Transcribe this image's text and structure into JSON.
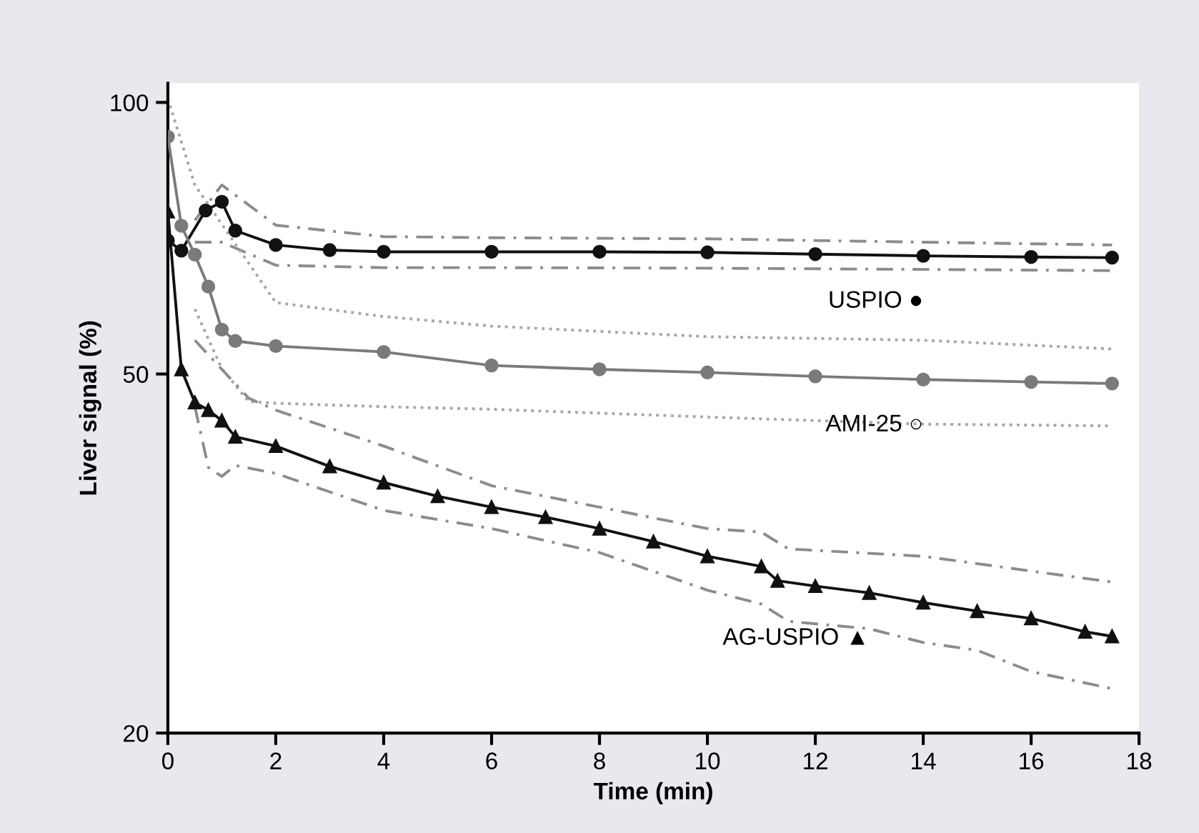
{
  "chart_data": {
    "type": "line",
    "xlabel": "Time (min)",
    "ylabel": "Liver signal (%)",
    "log": "y",
    "xlim": [
      0,
      18
    ],
    "xticks": [
      0,
      2,
      4,
      6,
      8,
      10,
      12,
      14,
      16,
      18
    ],
    "ylim": [
      20,
      105
    ],
    "yticks": [
      20,
      50,
      100
    ],
    "grid": false,
    "legend": false,
    "series": [
      {
        "name": "USPIO ●",
        "color": "#111111",
        "marker": "circle",
        "line_style": "solid",
        "x": [
          0,
          0.25,
          0.7,
          1.0,
          1.25,
          2,
          3,
          4,
          6,
          8,
          10,
          12,
          14,
          16,
          17.5
        ],
        "values": [
          70.3,
          68.5,
          75.9,
          77.6,
          72.1,
          69.5,
          68.6,
          68.3,
          68.3,
          68.3,
          68.2,
          67.9,
          67.6,
          67.4,
          67.3
        ]
      },
      {
        "name": "AMI-25 ○",
        "color": "#7a7a7a",
        "marker": "circle",
        "line_style": "solid",
        "x": [
          0,
          0.25,
          0.5,
          0.75,
          1.0,
          1.25,
          2,
          4,
          6,
          8,
          10,
          12,
          14,
          16,
          17.5
        ],
        "values": [
          91.6,
          73,
          67.8,
          62.5,
          56,
          54.4,
          53.7,
          52.9,
          51.1,
          50.6,
          50.2,
          49.7,
          49.3,
          49.0,
          48.8
        ]
      },
      {
        "name": "AG-USPIO ▲",
        "color": "#111111",
        "marker": "triangle",
        "line_style": "solid",
        "x": [
          0,
          0.25,
          0.5,
          0.75,
          1.0,
          1.25,
          2,
          3,
          4,
          5,
          6,
          7,
          8,
          9,
          10,
          11,
          11.3,
          12,
          13,
          14,
          15,
          16,
          17,
          17.5
        ],
        "values": [
          75.7,
          50.6,
          46.5,
          45.6,
          44.4,
          42.6,
          41.6,
          39.5,
          37.9,
          36.6,
          35.6,
          34.7,
          33.7,
          32.6,
          31.4,
          30.6,
          29.5,
          29.1,
          28.6,
          27.9,
          27.3,
          26.8,
          25.9,
          25.6
        ]
      },
      {
        "color": "#8c8c8c",
        "marker": "none",
        "line_style": "dashed",
        "x": [
          0.5,
          1.0,
          2,
          4,
          6,
          10,
          14,
          17.5
        ],
        "values": [
          74,
          81,
          73.1,
          71.0,
          70.8,
          70.6,
          70.0,
          69.5
        ]
      },
      {
        "color": "#8c8c8c",
        "marker": "none",
        "line_style": "dashed",
        "x": [
          0.5,
          1.0,
          2,
          4,
          6,
          10,
          14,
          17.5
        ],
        "values": [
          70,
          70,
          66.0,
          65.6,
          65.6,
          65.5,
          65.3,
          65.1
        ]
      },
      {
        "color": "#a6a6a6",
        "marker": "none",
        "line_style": "dotted",
        "x": [
          0,
          0.5,
          2,
          4,
          6,
          10,
          14,
          17.5
        ],
        "values": [
          101,
          81,
          60,
          57.9,
          56.5,
          55.0,
          54.5,
          53.3
        ]
      },
      {
        "color": "#a6a6a6",
        "marker": "none",
        "line_style": "dotted",
        "x": [
          0.5,
          1.0,
          1.5,
          2,
          4,
          6,
          10,
          14,
          17.5
        ],
        "values": [
          59,
          50.7,
          46.6,
          46.4,
          46.0,
          45.7,
          44.8,
          44.0,
          43.8
        ]
      },
      {
        "color": "#8c8c8c",
        "marker": "none",
        "line_style": "dashed",
        "x": [
          0.5,
          1.0,
          1.5,
          2,
          4,
          6,
          10,
          11,
          11.5,
          14,
          17.5
        ],
        "values": [
          54.5,
          50.6,
          47,
          45.6,
          41.6,
          37.6,
          33.7,
          33.4,
          32.0,
          31.4,
          29.4
        ]
      },
      {
        "color": "#8c8c8c",
        "marker": "none",
        "line_style": "dashed",
        "x": [
          0.5,
          0.75,
          1.0,
          1.25,
          2,
          4,
          6,
          8,
          10,
          11,
          11.5,
          13,
          14,
          15,
          16,
          17.5
        ],
        "values": [
          46,
          39.4,
          38.5,
          39.6,
          38.8,
          35.3,
          33.7,
          31.7,
          28.8,
          27.8,
          26.6,
          26.1,
          25.2,
          24.7,
          23.4,
          22.4
        ]
      }
    ]
  }
}
